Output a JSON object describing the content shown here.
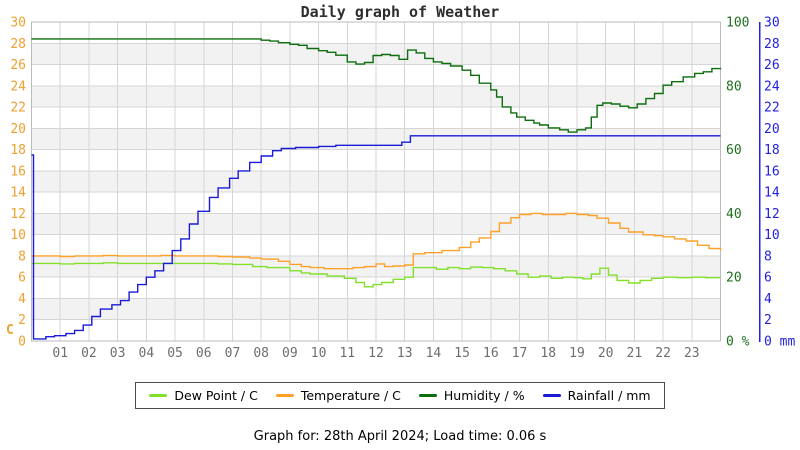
{
  "page": {
    "title": "Daily graph of Weather",
    "caption": "Graph for: 28th April 2024; Load time: 0.06 s"
  },
  "colors": {
    "background": "#ffffff",
    "band_gray": "#f2f2f2",
    "gridline": "#d6d6d6",
    "plot_border": "#bbbbbb",
    "x_label": "#6e6e6e",
    "title_text": "#2e2e2e",
    "legend_border": "#4a4a4a"
  },
  "chart_data": {
    "type": "line",
    "title": "Daily graph of Weather",
    "grid": true,
    "legend_position": "bottom",
    "x_axis": {
      "range": [
        0,
        24
      ],
      "tick_labels": [
        "01",
        "02",
        "03",
        "04",
        "05",
        "06",
        "07",
        "08",
        "09",
        "10",
        "11",
        "12",
        "13",
        "14",
        "15",
        "16",
        "17",
        "18",
        "19",
        "20",
        "21",
        "22",
        "23"
      ]
    },
    "axes": {
      "left": {
        "unit": "C",
        "color": "#f0a030",
        "range": [
          0,
          30
        ],
        "tick_step": 2
      },
      "right_humidity": {
        "unit": "%",
        "color": "#1e701e",
        "range": [
          0,
          100
        ],
        "tick_step": 20
      },
      "right_rainfall": {
        "unit": "mm",
        "color": "#2222e0",
        "range": [
          0,
          30
        ],
        "tick_step": 2
      }
    },
    "series": [
      {
        "name": "Dew Point / C",
        "color": "#82e02a",
        "axis": "left",
        "points": [
          [
            0,
            7.3
          ],
          [
            0.5,
            7.3
          ],
          [
            1,
            7.25
          ],
          [
            1.5,
            7.3
          ],
          [
            2,
            7.3
          ],
          [
            2.5,
            7.35
          ],
          [
            3,
            7.3
          ],
          [
            3.5,
            7.3
          ],
          [
            4,
            7.3
          ],
          [
            4.5,
            7.3
          ],
          [
            5,
            7.3
          ],
          [
            5.5,
            7.3
          ],
          [
            6,
            7.3
          ],
          [
            6.5,
            7.25
          ],
          [
            7,
            7.2
          ],
          [
            7.7,
            7.0
          ],
          [
            8.2,
            6.9
          ],
          [
            8.6,
            6.9
          ],
          [
            9,
            6.6
          ],
          [
            9.4,
            6.4
          ],
          [
            9.7,
            6.3
          ],
          [
            10.3,
            6.1
          ],
          [
            10.9,
            5.9
          ],
          [
            11.3,
            5.5
          ],
          [
            11.6,
            5.1
          ],
          [
            11.9,
            5.3
          ],
          [
            12.2,
            5.5
          ],
          [
            12.6,
            5.8
          ],
          [
            13,
            6.0
          ],
          [
            13.3,
            6.9
          ],
          [
            13.7,
            6.9
          ],
          [
            14.1,
            6.75
          ],
          [
            14.5,
            6.9
          ],
          [
            14.9,
            6.8
          ],
          [
            15.3,
            6.95
          ],
          [
            15.7,
            6.9
          ],
          [
            16.1,
            6.8
          ],
          [
            16.5,
            6.6
          ],
          [
            16.9,
            6.3
          ],
          [
            17.3,
            6.0
          ],
          [
            17.7,
            6.1
          ],
          [
            18.1,
            5.9
          ],
          [
            18.5,
            6.0
          ],
          [
            18.9,
            5.95
          ],
          [
            19.2,
            5.85
          ],
          [
            19.5,
            6.3
          ],
          [
            19.8,
            6.85
          ],
          [
            20.1,
            6.2
          ],
          [
            20.4,
            5.7
          ],
          [
            20.8,
            5.45
          ],
          [
            21.2,
            5.7
          ],
          [
            21.6,
            5.9
          ],
          [
            22,
            6.0
          ],
          [
            22.5,
            5.95
          ],
          [
            23,
            6.0
          ],
          [
            23.5,
            5.95
          ],
          [
            24,
            5.95
          ]
        ]
      },
      {
        "name": "Temperature / C",
        "color": "#ffa028",
        "axis": "left",
        "points": [
          [
            0,
            8.0
          ],
          [
            0.5,
            8.0
          ],
          [
            1,
            7.95
          ],
          [
            1.5,
            8.0
          ],
          [
            2,
            8.0
          ],
          [
            2.5,
            8.05
          ],
          [
            3,
            8.0
          ],
          [
            3.5,
            8.0
          ],
          [
            4,
            8.0
          ],
          [
            4.5,
            8.05
          ],
          [
            5,
            8.0
          ],
          [
            5.5,
            8.0
          ],
          [
            6,
            8.0
          ],
          [
            6.5,
            7.95
          ],
          [
            7,
            7.9
          ],
          [
            7.6,
            7.8
          ],
          [
            8,
            7.7
          ],
          [
            8.6,
            7.5
          ],
          [
            9,
            7.2
          ],
          [
            9.4,
            7.0
          ],
          [
            9.7,
            6.9
          ],
          [
            10.2,
            6.8
          ],
          [
            10.7,
            6.8
          ],
          [
            11.2,
            6.9
          ],
          [
            11.6,
            7.0
          ],
          [
            12,
            7.25
          ],
          [
            12.3,
            7.0
          ],
          [
            12.6,
            7.05
          ],
          [
            13,
            7.15
          ],
          [
            13.3,
            8.2
          ],
          [
            13.7,
            8.3
          ],
          [
            14.3,
            8.5
          ],
          [
            14.9,
            8.8
          ],
          [
            15.3,
            9.3
          ],
          [
            15.6,
            9.7
          ],
          [
            16,
            10.3
          ],
          [
            16.3,
            11.1
          ],
          [
            16.7,
            11.6
          ],
          [
            17,
            11.9
          ],
          [
            17.4,
            12.0
          ],
          [
            17.8,
            11.9
          ],
          [
            18.2,
            11.9
          ],
          [
            18.6,
            12.0
          ],
          [
            19,
            11.9
          ],
          [
            19.4,
            11.8
          ],
          [
            19.7,
            11.55
          ],
          [
            20.1,
            11.1
          ],
          [
            20.5,
            10.6
          ],
          [
            20.8,
            10.25
          ],
          [
            21.3,
            10.0
          ],
          [
            21.7,
            9.9
          ],
          [
            22,
            9.8
          ],
          [
            22.4,
            9.6
          ],
          [
            22.8,
            9.4
          ],
          [
            23.2,
            9.0
          ],
          [
            23.6,
            8.7
          ],
          [
            24,
            8.5
          ]
        ]
      },
      {
        "name": "Humidity / %",
        "color": "#0c6e0c",
        "axis": "right_humidity",
        "points": [
          [
            0,
            94.7
          ],
          [
            1,
            94.7
          ],
          [
            2,
            94.7
          ],
          [
            3,
            94.7
          ],
          [
            4,
            94.7
          ],
          [
            5,
            94.7
          ],
          [
            6,
            94.7
          ],
          [
            7,
            94.7
          ],
          [
            7.5,
            94.7
          ],
          [
            8,
            94.3
          ],
          [
            8.3,
            94.0
          ],
          [
            8.6,
            93.5
          ],
          [
            9,
            93.0
          ],
          [
            9.3,
            92.7
          ],
          [
            9.6,
            91.7
          ],
          [
            10,
            91.0
          ],
          [
            10.3,
            90.5
          ],
          [
            10.6,
            89.6
          ],
          [
            11,
            87.5
          ],
          [
            11.3,
            86.8
          ],
          [
            11.6,
            87.3
          ],
          [
            11.9,
            89.5
          ],
          [
            12.2,
            89.8
          ],
          [
            12.5,
            89.5
          ],
          [
            12.8,
            88.3
          ],
          [
            13.1,
            91.2
          ],
          [
            13.4,
            90.3
          ],
          [
            13.7,
            88.6
          ],
          [
            14,
            87.5
          ],
          [
            14.3,
            87.0
          ],
          [
            14.6,
            86.2
          ],
          [
            15,
            84.9
          ],
          [
            15.3,
            83.3
          ],
          [
            15.6,
            80.8
          ],
          [
            16,
            78.7
          ],
          [
            16.2,
            76.5
          ],
          [
            16.4,
            73.4
          ],
          [
            16.7,
            71.5
          ],
          [
            16.9,
            70.2
          ],
          [
            17.2,
            69.2
          ],
          [
            17.5,
            68.3
          ],
          [
            17.7,
            67.7
          ],
          [
            18,
            66.8
          ],
          [
            18.4,
            66.2
          ],
          [
            18.7,
            65.5
          ],
          [
            19,
            66.2
          ],
          [
            19.3,
            66.8
          ],
          [
            19.5,
            70.2
          ],
          [
            19.7,
            73.9
          ],
          [
            19.9,
            74.6
          ],
          [
            20.2,
            74.3
          ],
          [
            20.5,
            73.6
          ],
          [
            20.8,
            73.1
          ],
          [
            21.1,
            74.3
          ],
          [
            21.4,
            76.0
          ],
          [
            21.7,
            77.6
          ],
          [
            22,
            80.2
          ],
          [
            22.3,
            81.3
          ],
          [
            22.7,
            82.8
          ],
          [
            23.1,
            83.9
          ],
          [
            23.4,
            84.4
          ],
          [
            23.7,
            85.4
          ],
          [
            24,
            85.6
          ]
        ]
      },
      {
        "name": "Rainfall / mm",
        "color": "#1a1ad8",
        "axis": "right_rainfall",
        "points": [
          [
            0,
            17.5
          ],
          [
            0.07,
            0.2
          ],
          [
            0.5,
            0.4
          ],
          [
            0.8,
            0.5
          ],
          [
            1.2,
            0.7
          ],
          [
            1.5,
            1.0
          ],
          [
            1.8,
            1.5
          ],
          [
            2.1,
            2.3
          ],
          [
            2.4,
            3.0
          ],
          [
            2.8,
            3.4
          ],
          [
            3.1,
            3.8
          ],
          [
            3.4,
            4.6
          ],
          [
            3.7,
            5.3
          ],
          [
            4,
            6.0
          ],
          [
            4.3,
            6.6
          ],
          [
            4.6,
            7.3
          ],
          [
            4.9,
            8.5
          ],
          [
            5.2,
            9.6
          ],
          [
            5.5,
            11.0
          ],
          [
            5.8,
            12.2
          ],
          [
            6.2,
            13.5
          ],
          [
            6.5,
            14.4
          ],
          [
            6.9,
            15.3
          ],
          [
            7.2,
            16.0
          ],
          [
            7.6,
            16.8
          ],
          [
            8,
            17.4
          ],
          [
            8.4,
            17.9
          ],
          [
            8.7,
            18.1
          ],
          [
            9.2,
            18.2
          ],
          [
            10,
            18.3
          ],
          [
            10.6,
            18.4
          ],
          [
            11.5,
            18.4
          ],
          [
            12.4,
            18.4
          ],
          [
            12.9,
            18.7
          ],
          [
            13.2,
            19.3
          ],
          [
            14,
            19.3
          ],
          [
            16,
            19.3
          ],
          [
            18,
            19.3
          ],
          [
            20,
            19.3
          ],
          [
            22,
            19.3
          ],
          [
            24,
            19.3
          ]
        ]
      }
    ]
  }
}
